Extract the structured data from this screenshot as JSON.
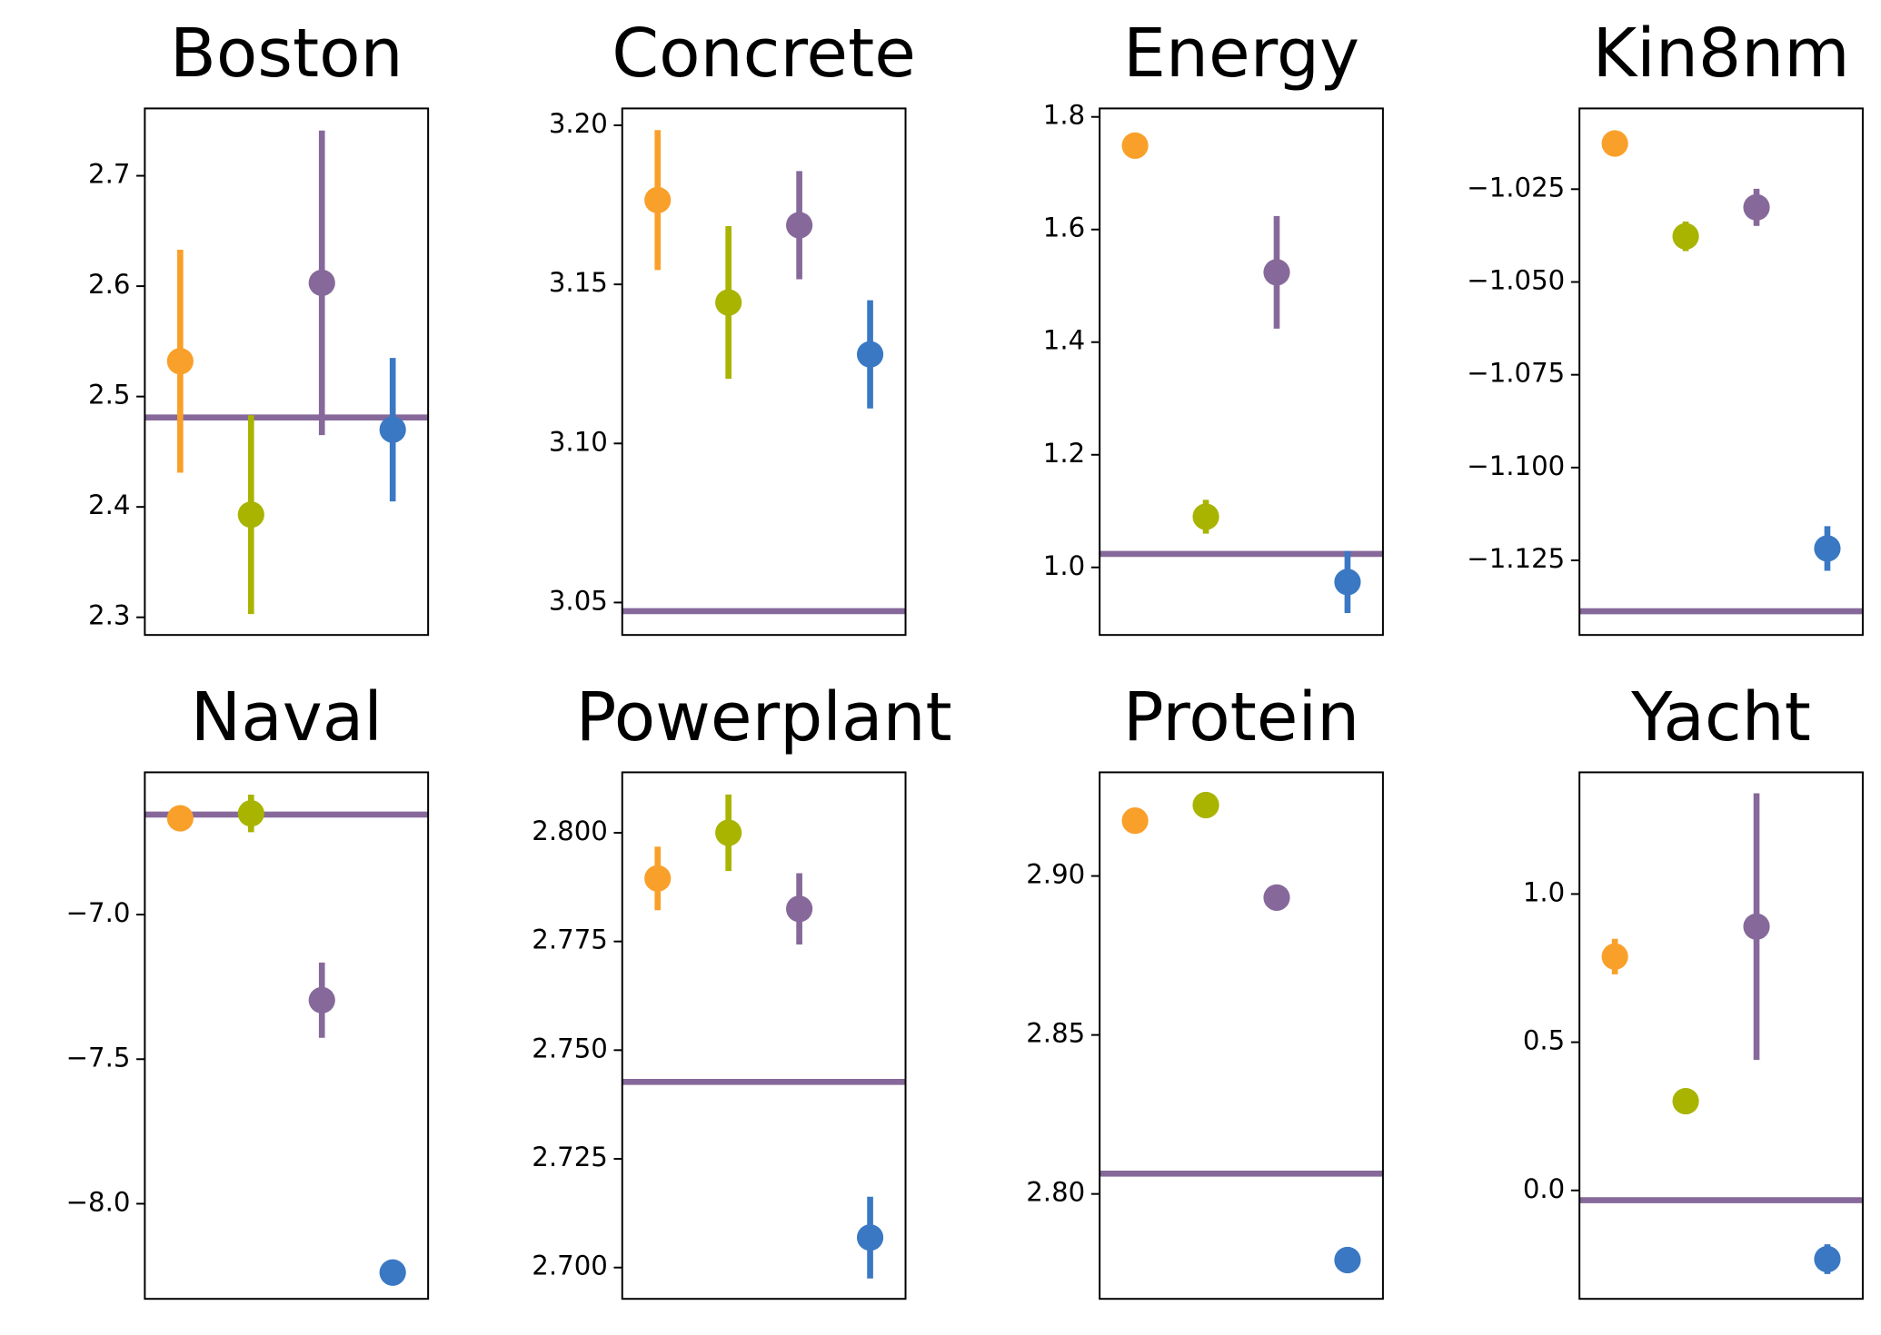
{
  "chart_data": [
    {
      "type": "errorbar",
      "title": "Boston",
      "values": [
        2.532,
        2.393,
        2.603,
        2.47
      ],
      "errors": [
        0.101,
        0.09,
        0.138,
        0.065
      ],
      "colors": [
        "#f9a02a",
        "#a8b400",
        "#86699a",
        "#3a78c3"
      ],
      "hline": 2.481,
      "hline_color": "#86699a",
      "ylim": [
        2.284,
        2.761
      ],
      "yticks": [
        2.3,
        2.4,
        2.5,
        2.6,
        2.7
      ]
    },
    {
      "type": "errorbar",
      "title": "Concrete",
      "values": [
        3.1765,
        3.1443,
        3.1686,
        3.128
      ],
      "errors": [
        0.022,
        0.024,
        0.017,
        0.017
      ],
      "colors": [
        "#f9a02a",
        "#a8b400",
        "#86699a",
        "#3a78c3"
      ],
      "hline": 3.0473,
      "hline_color": "#86699a",
      "ylim": [
        3.0398,
        3.2053
      ],
      "yticks": [
        3.05,
        {
          "value": 3.1,
          "label": "3.10"
        },
        3.15,
        {
          "value": 3.2,
          "label": "3.20"
        }
      ]
    },
    {
      "type": "errorbar",
      "title": "Energy",
      "values": [
        1.749,
        1.09,
        1.524,
        0.974
      ],
      "errors": [
        0.02,
        0.03,
        0.1,
        0.055
      ],
      "colors": [
        "#f9a02a",
        "#a8b400",
        "#86699a",
        "#3a78c3"
      ],
      "hline": 1.024,
      "hline_color": "#86699a",
      "ylim": [
        0.88,
        1.815
      ],
      "yticks": [
        {
          "value": 1.0,
          "label": "1.0"
        },
        1.2,
        1.4,
        1.6,
        1.8
      ]
    },
    {
      "type": "errorbar",
      "title": "Kin8nm",
      "values": [
        -1.0127,
        -1.0377,
        -1.0299,
        -1.1218
      ],
      "errors": [
        0.003,
        0.004,
        0.005,
        0.006
      ],
      "colors": [
        "#f9a02a",
        "#a8b400",
        "#86699a",
        "#3a78c3"
      ],
      "hline": -1.1387,
      "hline_color": "#86699a",
      "ylim": [
        -1.1451,
        -1.00325
      ],
      "yticks": [
        {
          "value": -1.125,
          "label": "−1.125"
        },
        {
          "value": -1.1,
          "label": "−1.100"
        },
        {
          "value": -1.075,
          "label": "−1.075"
        },
        {
          "value": -1.05,
          "label": "−1.050"
        },
        {
          "value": -1.025,
          "label": "−1.025"
        }
      ]
    },
    {
      "type": "errorbar",
      "title": "Naval",
      "values": [
        -6.667,
        -6.65,
        -7.296,
        -8.238
      ],
      "errors": [
        0.02,
        0.065,
        0.13,
        0.01
      ],
      "colors": [
        "#f9a02a",
        "#a8b400",
        "#86699a",
        "#3a78c3"
      ],
      "hline": -6.654,
      "hline_color": "#86699a",
      "ylim": [
        -8.329,
        -6.508
      ],
      "yticks": [
        {
          "value": -8.0,
          "label": "−8.0"
        },
        {
          "value": -7.5,
          "label": "−7.5"
        },
        {
          "value": -7.0,
          "label": "−7.0"
        }
      ]
    },
    {
      "type": "errorbar",
      "title": "Powerplant",
      "values": [
        2.7895,
        2.8,
        2.7825,
        2.7069
      ],
      "errors": [
        0.0073,
        0.0088,
        0.0082,
        0.0094
      ],
      "colors": [
        "#f9a02a",
        "#a8b400",
        "#86699a",
        "#3a78c3"
      ],
      "hline": 2.7427,
      "hline_color": "#86699a",
      "ylim": [
        2.6928,
        2.8139
      ],
      "yticks": [
        {
          "value": 2.7,
          "label": "2.700"
        },
        2.725,
        {
          "value": 2.75,
          "label": "2.750"
        },
        2.775,
        {
          "value": 2.8,
          "label": "2.800"
        }
      ]
    },
    {
      "type": "errorbar",
      "title": "Protein",
      "values": [
        2.9174,
        2.9223,
        2.8932,
        2.7792
      ],
      "errors": [
        0.001,
        0.001,
        0.001,
        0.004
      ],
      "colors": [
        "#f9a02a",
        "#a8b400",
        "#86699a",
        "#3a78c3"
      ],
      "hline": 2.8064,
      "hline_color": "#86699a",
      "ylim": [
        2.767,
        2.9326
      ],
      "yticks": [
        {
          "value": 2.8,
          "label": "2.80"
        },
        2.85,
        {
          "value": 2.9,
          "label": "2.90"
        }
      ]
    },
    {
      "type": "errorbar",
      "title": "Yacht",
      "values": [
        0.789,
        0.301,
        0.89,
        -0.232
      ],
      "errors": [
        0.06,
        0.03,
        0.45,
        0.05
      ],
      "colors": [
        "#f9a02a",
        "#a8b400",
        "#86699a",
        "#3a78c3"
      ],
      "hline": -0.033,
      "hline_color": "#86699a",
      "ylim": [
        -0.3659,
        1.4106
      ],
      "yticks": [
        {
          "value": 0.0,
          "label": "0.0"
        },
        0.5,
        {
          "value": 1.0,
          "label": "1.0"
        }
      ]
    }
  ]
}
